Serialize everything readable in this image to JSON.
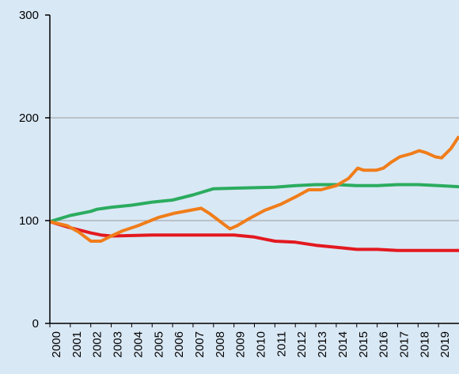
{
  "chart_data": {
    "type": "line",
    "background": "#d9e8f5",
    "ylim": [
      0,
      300
    ],
    "yticks": [
      0,
      100,
      200,
      300
    ],
    "xlim": [
      2000,
      2020
    ],
    "xticks": [
      2000,
      2001,
      2002,
      2003,
      2004,
      2005,
      2006,
      2007,
      2008,
      2009,
      2010,
      2011,
      2012,
      2013,
      2014,
      2015,
      2016,
      2017,
      2018,
      2019
    ],
    "grid": true,
    "series": [
      {
        "color": "#2bac5f",
        "x": [
          2000,
          2001,
          2002,
          2002.3,
          2003,
          2004,
          2005,
          2006,
          2007,
          2008,
          2009,
          2010,
          2011,
          2012,
          2013,
          2014,
          2015,
          2016,
          2017,
          2018,
          2019,
          2020
        ],
        "values": [
          99,
          105,
          109,
          111,
          113,
          115,
          118,
          120,
          125,
          131,
          131.5,
          132,
          132.5,
          134,
          135,
          135,
          134,
          134,
          135,
          135,
          134,
          133
        ]
      },
      {
        "color": "#e3181f",
        "x": [
          2000,
          2001,
          2002,
          2002.5,
          2003,
          2005,
          2008,
          2009,
          2010,
          2010.5,
          2011,
          2012,
          2013,
          2014,
          2015,
          2016,
          2017,
          2018,
          2019,
          2020
        ],
        "values": [
          99,
          93,
          88,
          86,
          85,
          86,
          86,
          86,
          84,
          82,
          80,
          79,
          76,
          74,
          72,
          72,
          71,
          71,
          71,
          71
        ]
      },
      {
        "color": "#f07d1a",
        "x": [
          2000,
          2000.85,
          2001.4,
          2002,
          2002.5,
          2003,
          2003.55,
          2004.3,
          2005.3,
          2006.05,
          2006.85,
          2007.4,
          2007.8,
          2008.4,
          2008.8,
          2009.15,
          2009.75,
          2010.5,
          2011.3,
          2012.1,
          2012.65,
          2013.25,
          2014,
          2014.6,
          2015.05,
          2015.35,
          2015.95,
          2016.3,
          2016.7,
          2017.1,
          2017.65,
          2018.05,
          2018.4,
          2018.85,
          2019.15,
          2019.6,
          2020
        ],
        "values": [
          99,
          95,
          89,
          80,
          80,
          85,
          90,
          95,
          103,
          107,
          110,
          112,
          107,
          98,
          92,
          95,
          102,
          110,
          116,
          124,
          130,
          130,
          134,
          141,
          151,
          149,
          149,
          151,
          157,
          162,
          165,
          168,
          166,
          162,
          161,
          170,
          182
        ]
      }
    ]
  }
}
